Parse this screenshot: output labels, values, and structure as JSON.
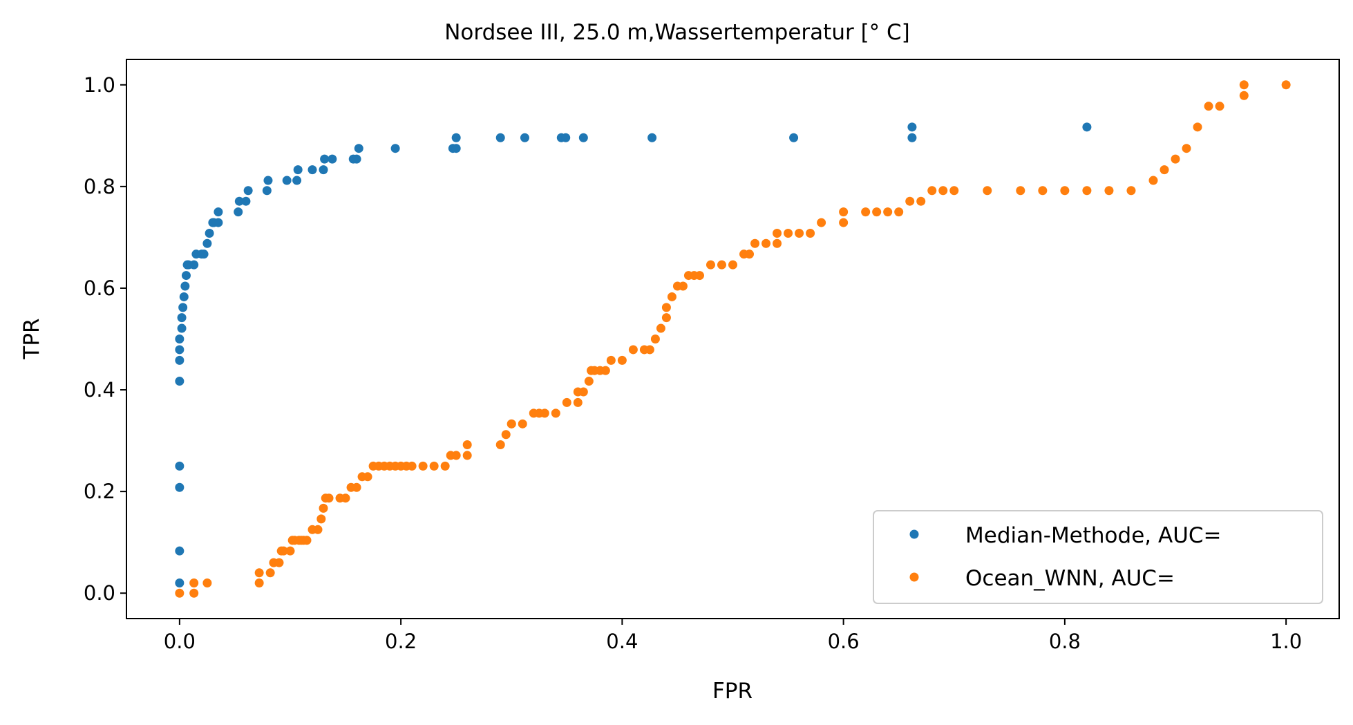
{
  "chart_data": {
    "type": "scatter",
    "title": "Nordsee III, 25.0 m,Wassertemperatur [° C]",
    "xlabel": "FPR",
    "ylabel": "TPR",
    "xlim": [
      -0.048,
      1.048
    ],
    "ylim": [
      -0.05,
      1.05
    ],
    "xticks": [
      0.0,
      0.2,
      0.4,
      0.6,
      0.8,
      1.0
    ],
    "xtick_labels": [
      "0.0",
      "0.2",
      "0.4",
      "0.6",
      "0.8",
      "1.0"
    ],
    "yticks": [
      0.0,
      0.2,
      0.4,
      0.6,
      0.8,
      1.0
    ],
    "ytick_labels": [
      "0.0",
      "0.2",
      "0.4",
      "0.6",
      "0.8",
      "1.0"
    ],
    "grid": false,
    "legend_position": "lower-right",
    "series": [
      {
        "name": "Median-Methode, AUC=",
        "color": "#1f77b4",
        "x": [
          0.0,
          0.0,
          0.0,
          0.0,
          0.0,
          0.0,
          0.0,
          0.0,
          0.002,
          0.002,
          0.003,
          0.004,
          0.005,
          0.006,
          0.007,
          0.008,
          0.013,
          0.015,
          0.02,
          0.022,
          0.025,
          0.027,
          0.03,
          0.031,
          0.035,
          0.035,
          0.053,
          0.054,
          0.06,
          0.062,
          0.079,
          0.08,
          0.097,
          0.106,
          0.107,
          0.12,
          0.13,
          0.131,
          0.138,
          0.157,
          0.16,
          0.162,
          0.195,
          0.247,
          0.25,
          0.25,
          0.29,
          0.312,
          0.345,
          0.349,
          0.365,
          0.427,
          0.555,
          0.662,
          0.662,
          0.82
        ],
        "y": [
          0.02,
          0.083,
          0.208,
          0.25,
          0.417,
          0.458,
          0.479,
          0.5,
          0.521,
          0.542,
          0.562,
          0.583,
          0.604,
          0.625,
          0.646,
          0.646,
          0.646,
          0.667,
          0.667,
          0.667,
          0.688,
          0.708,
          0.729,
          0.729,
          0.75,
          0.729,
          0.75,
          0.771,
          0.771,
          0.792,
          0.792,
          0.812,
          0.812,
          0.812,
          0.833,
          0.833,
          0.833,
          0.854,
          0.854,
          0.854,
          0.854,
          0.875,
          0.875,
          0.875,
          0.875,
          0.896,
          0.896,
          0.896,
          0.896,
          0.896,
          0.896,
          0.896,
          0.896,
          0.896,
          0.917,
          0.917
        ]
      },
      {
        "name": "Ocean_WNN, AUC=",
        "color": "#ff7f0e",
        "x": [
          0.0,
          0.013,
          0.013,
          0.025,
          0.072,
          0.072,
          0.082,
          0.085,
          0.09,
          0.092,
          0.094,
          0.1,
          0.102,
          0.104,
          0.108,
          0.11,
          0.112,
          0.115,
          0.12,
          0.125,
          0.128,
          0.13,
          0.132,
          0.135,
          0.145,
          0.15,
          0.155,
          0.16,
          0.165,
          0.17,
          0.175,
          0.18,
          0.185,
          0.19,
          0.195,
          0.2,
          0.205,
          0.21,
          0.22,
          0.23,
          0.24,
          0.245,
          0.25,
          0.26,
          0.26,
          0.29,
          0.295,
          0.3,
          0.3,
          0.31,
          0.32,
          0.325,
          0.33,
          0.34,
          0.35,
          0.36,
          0.36,
          0.365,
          0.37,
          0.372,
          0.375,
          0.38,
          0.385,
          0.39,
          0.4,
          0.41,
          0.42,
          0.425,
          0.43,
          0.435,
          0.44,
          0.44,
          0.445,
          0.45,
          0.455,
          0.46,
          0.465,
          0.47,
          0.48,
          0.49,
          0.5,
          0.51,
          0.515,
          0.52,
          0.53,
          0.54,
          0.54,
          0.55,
          0.56,
          0.57,
          0.58,
          0.6,
          0.6,
          0.62,
          0.63,
          0.64,
          0.65,
          0.66,
          0.67,
          0.68,
          0.69,
          0.7,
          0.73,
          0.76,
          0.78,
          0.8,
          0.82,
          0.84,
          0.86,
          0.88,
          0.89,
          0.9,
          0.91,
          0.92,
          0.93,
          0.94,
          0.962,
          0.962,
          1.0
        ],
        "y": [
          0.0,
          0.0,
          0.02,
          0.02,
          0.02,
          0.04,
          0.04,
          0.06,
          0.06,
          0.083,
          0.083,
          0.083,
          0.104,
          0.104,
          0.104,
          0.104,
          0.104,
          0.104,
          0.125,
          0.125,
          0.146,
          0.167,
          0.187,
          0.187,
          0.187,
          0.187,
          0.208,
          0.208,
          0.229,
          0.229,
          0.25,
          0.25,
          0.25,
          0.25,
          0.25,
          0.25,
          0.25,
          0.25,
          0.25,
          0.25,
          0.25,
          0.271,
          0.271,
          0.271,
          0.292,
          0.292,
          0.312,
          0.333,
          0.333,
          0.333,
          0.354,
          0.354,
          0.354,
          0.354,
          0.375,
          0.375,
          0.396,
          0.396,
          0.417,
          0.438,
          0.438,
          0.438,
          0.438,
          0.458,
          0.458,
          0.479,
          0.479,
          0.479,
          0.5,
          0.521,
          0.542,
          0.562,
          0.583,
          0.604,
          0.604,
          0.625,
          0.625,
          0.625,
          0.646,
          0.646,
          0.646,
          0.667,
          0.667,
          0.688,
          0.688,
          0.688,
          0.708,
          0.708,
          0.708,
          0.708,
          0.729,
          0.729,
          0.75,
          0.75,
          0.75,
          0.75,
          0.75,
          0.771,
          0.771,
          0.792,
          0.792,
          0.792,
          0.792,
          0.792,
          0.792,
          0.792,
          0.792,
          0.792,
          0.792,
          0.812,
          0.833,
          0.854,
          0.875,
          0.917,
          0.958,
          0.958,
          0.979,
          1.0,
          1.0
        ]
      }
    ]
  }
}
